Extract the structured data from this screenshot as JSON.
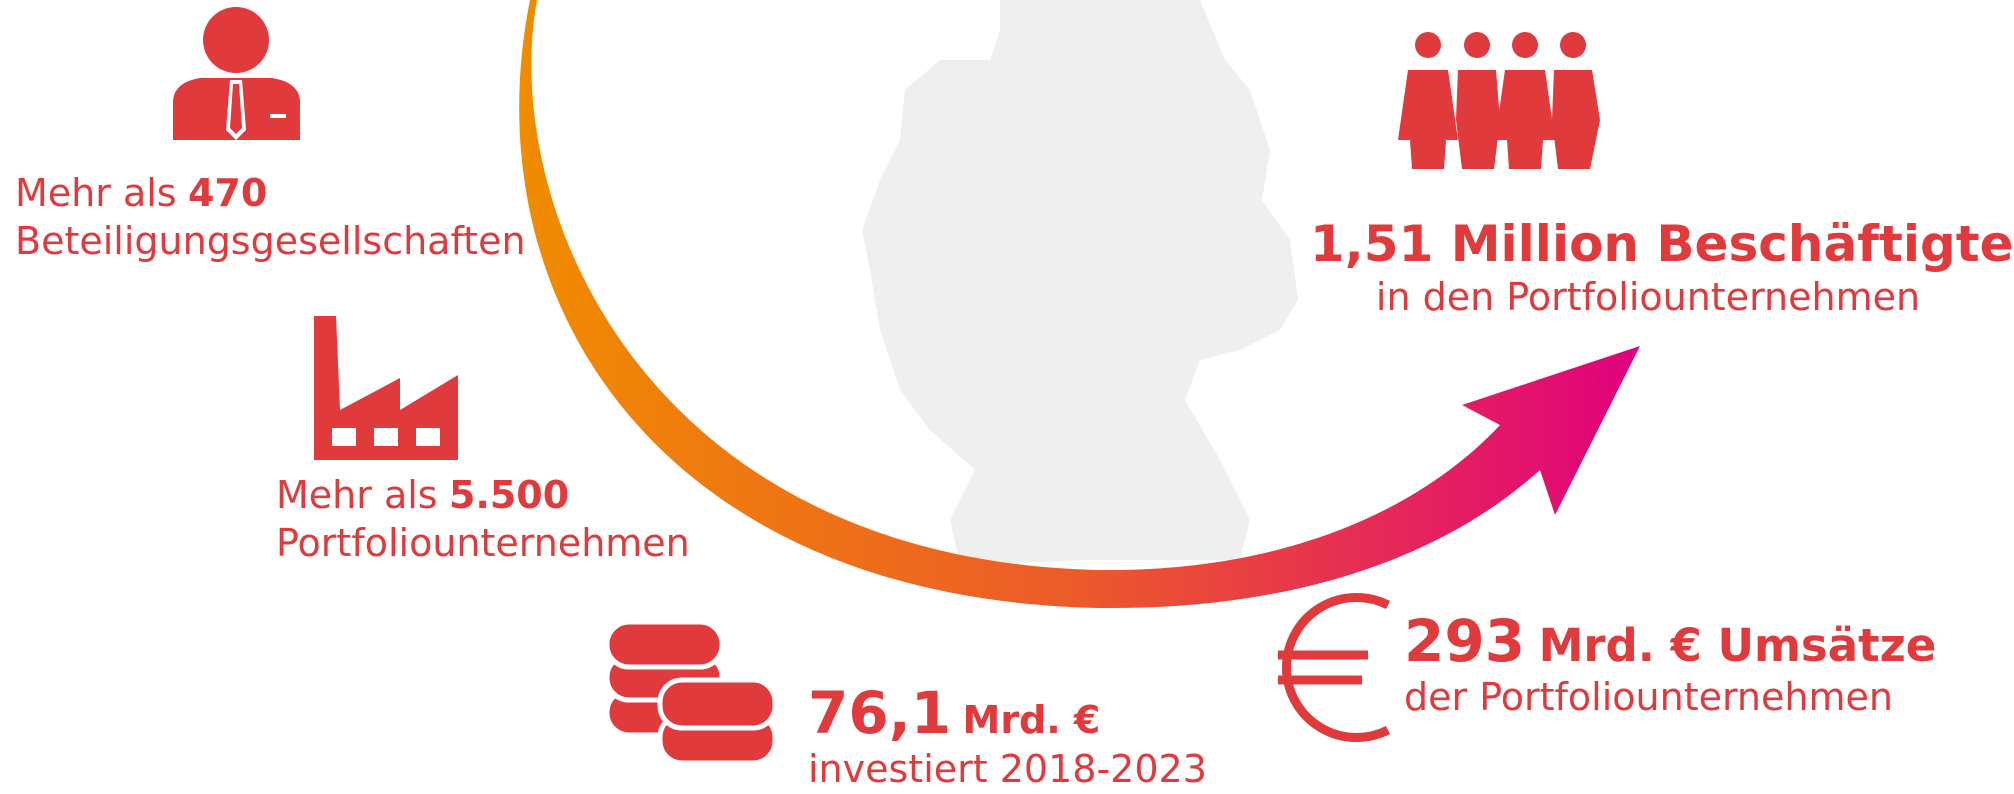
{
  "items": [
    {
      "prefix": "Mehr als",
      "number": "470",
      "caption": "Beteiligungsgesellschaften"
    },
    {
      "prefix": "Mehr als",
      "number": "5.500",
      "caption": "Portfoliounternehmen"
    },
    {
      "number": "76,1",
      "unit": "Mrd. €",
      "caption": "investiert 2018-2023"
    },
    {
      "number": "293",
      "unit": "Mrd. € Umsätze",
      "caption": "der Portfoliounternehmen"
    },
    {
      "number": "1,51 Million Beschäftigte",
      "caption": "in den Portfoliounternehmen"
    }
  ]
}
